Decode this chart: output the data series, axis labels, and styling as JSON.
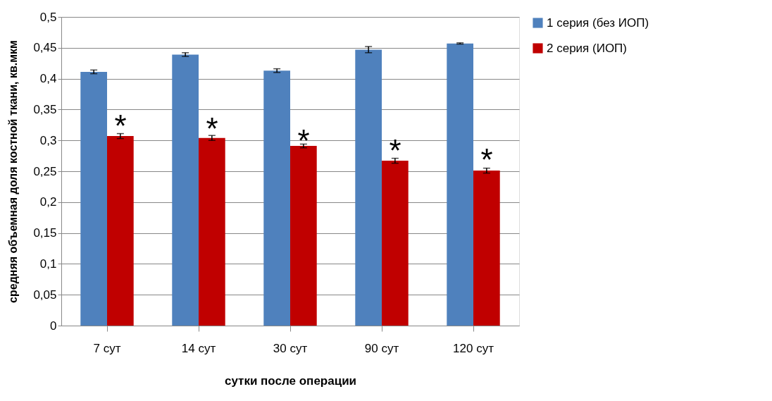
{
  "chart_data": {
    "type": "bar",
    "xlabel": "сутки после операции",
    "ylabel": "средняя объемная доля костной ткани, кв.мкм",
    "categories": [
      "7 сут",
      "14 сут",
      "30 сут",
      "90 сут",
      "120 сут"
    ],
    "series": [
      {
        "name": "1 серия (без ИОП)",
        "color": "#4f81bd",
        "values": [
          0.411,
          0.439,
          0.413,
          0.447,
          0.457
        ],
        "errors": [
          0.003,
          0.003,
          0.003,
          0.005,
          0.001
        ]
      },
      {
        "name": "2 серия (ИОП)",
        "color": "#c00000",
        "values": [
          0.307,
          0.304,
          0.291,
          0.267,
          0.251
        ],
        "errors": [
          0.004,
          0.004,
          0.003,
          0.004,
          0.004
        ]
      }
    ],
    "ylim": [
      0,
      0.5
    ],
    "yticks": [
      {
        "value": 0,
        "label": "0"
      },
      {
        "value": 0.05,
        "label": "0,05"
      },
      {
        "value": 0.1,
        "label": "0,1"
      },
      {
        "value": 0.15,
        "label": "0,15"
      },
      {
        "value": 0.2,
        "label": "0,2"
      },
      {
        "value": 0.25,
        "label": "0,25"
      },
      {
        "value": 0.3,
        "label": "0,3"
      },
      {
        "value": 0.35,
        "label": "0,35"
      },
      {
        "value": 0.4,
        "label": "0,4"
      },
      {
        "value": 0.45,
        "label": "0,45"
      },
      {
        "value": 0.5,
        "label": "0,5"
      }
    ],
    "grid": "y",
    "legend": "right",
    "annotations": [
      {
        "text": "*",
        "x": "7 сут",
        "y": 0.335
      },
      {
        "text": "*",
        "x": "14 сут",
        "y": 0.33
      },
      {
        "text": "*",
        "x": "30 сут",
        "y": 0.31
      },
      {
        "text": "*",
        "x": "90 сут",
        "y": 0.295
      },
      {
        "text": "*",
        "x": "120 сут",
        "y": 0.28
      }
    ]
  }
}
